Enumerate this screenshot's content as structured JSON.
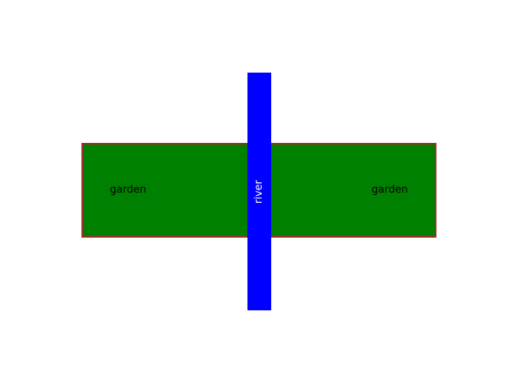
{
  "garden": {
    "fill_color": "#008000",
    "border_color": "#a52a2a",
    "label_left": "garden",
    "label_right": "garden",
    "label_color": "#000000"
  },
  "river": {
    "fill_color": "#0000ff",
    "label": "river",
    "label_color": "#ffffff"
  }
}
